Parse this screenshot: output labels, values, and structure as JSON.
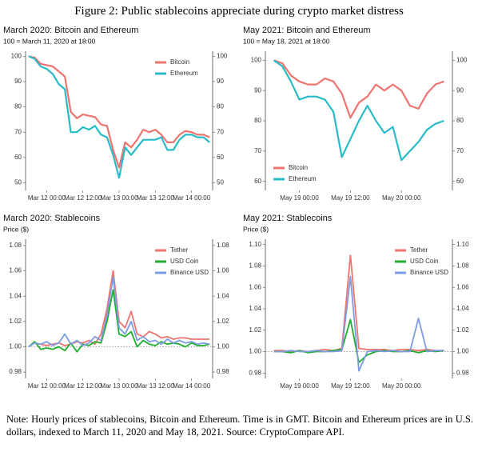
{
  "title": "Figure 2: Public stablecoins appreciate during crypto market distress",
  "note": "Note: Hourly prices of stablecoins, Bitcoin and Ethereum. Time is in GMT. Bitcoin and Ethereum prices are in U.S. dollars, indexed to March 11, 2020 and May 18, 2021. Source: CryptoCompare API.",
  "chart_data": [
    {
      "type": "line",
      "title": "March 2020: Bitcoin and Ethereum",
      "subtitle": "100 = March 11, 2020 at 18:00",
      "x": [
        0,
        2,
        4,
        6,
        8,
        10,
        12,
        14,
        16,
        18,
        20,
        22,
        24,
        26,
        28,
        30,
        32,
        34,
        36,
        38,
        40,
        42,
        44,
        46,
        48,
        50,
        52,
        54,
        56,
        58,
        60
      ],
      "xlim": [
        -1,
        61
      ],
      "xticks": [
        {
          "value": 6,
          "label": "Mar 12 00:00"
        },
        {
          "value": 18,
          "label": "Mar 12 12:00"
        },
        {
          "value": 30,
          "label": "Mar 13 00:00"
        },
        {
          "value": 42,
          "label": "Mar 13 12:00"
        },
        {
          "value": 54,
          "label": "Mar 14 00:00"
        }
      ],
      "ylim": [
        47,
        102
      ],
      "yticks": [
        50,
        60,
        70,
        80,
        90,
        100
      ],
      "y2lim": [
        47,
        102
      ],
      "y2ticks": [
        50,
        60,
        70,
        80,
        90,
        100
      ],
      "legend": "top-right",
      "series": [
        {
          "name": "Bitcoin",
          "color": "#ef7470",
          "values": [
            100,
            99.5,
            97,
            96.5,
            96,
            94,
            92,
            78,
            75.5,
            77,
            76.5,
            76,
            73,
            72.5,
            63,
            56,
            66,
            64,
            67,
            71,
            70,
            71,
            69,
            66,
            66,
            69,
            70.5,
            70,
            69,
            69,
            68
          ]
        },
        {
          "name": "Ethereum",
          "color": "#29bcc6",
          "values": [
            100,
            99,
            96,
            95,
            93,
            89,
            87,
            70,
            70,
            72,
            71,
            72.5,
            69,
            68,
            61,
            52,
            64,
            61,
            64,
            67,
            67,
            67,
            68,
            63,
            63,
            67,
            69,
            69,
            68,
            68,
            66
          ]
        }
      ]
    },
    {
      "type": "line",
      "title": "May 2021: Bitcoin and Ethereum",
      "subtitle": "100 = May 18, 2021 at 18:00",
      "x": [
        0,
        2,
        4,
        6,
        8,
        10,
        12,
        14,
        16,
        18,
        20,
        22,
        24,
        26,
        28,
        30,
        32,
        34,
        36,
        38,
        40
      ],
      "xlim": [
        -2,
        42
      ],
      "xticks": [
        {
          "value": 6,
          "label": "May 19 00:00"
        },
        {
          "value": 18,
          "label": "May 19 12:00"
        },
        {
          "value": 30,
          "label": "May 20 00:00"
        }
      ],
      "ylim": [
        57,
        103
      ],
      "yticks": [
        60,
        70,
        80,
        90,
        100
      ],
      "y2lim": [
        57,
        103
      ],
      "y2ticks": [
        60,
        70,
        80,
        90,
        100
      ],
      "legend": "bottom-left",
      "series": [
        {
          "name": "Bitcoin",
          "color": "#ef7470",
          "values": [
            100,
            99,
            95,
            93,
            92,
            92,
            94,
            93,
            89,
            81,
            86,
            88,
            92,
            90,
            92,
            90,
            85,
            84,
            89,
            92,
            93
          ]
        },
        {
          "name": "Ethereum",
          "color": "#29bcc6",
          "values": [
            100,
            98,
            93,
            87,
            88,
            88,
            87,
            83,
            68,
            74,
            80,
            85,
            80,
            76,
            78,
            67,
            70,
            73,
            77,
            79,
            80
          ]
        }
      ]
    },
    {
      "type": "line",
      "title": "March 2020: Stablecoins",
      "subtitle": "Price ($)",
      "x": [
        0,
        2,
        4,
        6,
        8,
        10,
        12,
        14,
        16,
        18,
        20,
        22,
        24,
        26,
        28,
        30,
        32,
        34,
        36,
        38,
        40,
        42,
        44,
        46,
        48,
        50,
        52,
        54,
        56,
        58,
        60
      ],
      "xlim": [
        -1,
        61
      ],
      "xticks": [
        {
          "value": 6,
          "label": "Mar 12 00:00"
        },
        {
          "value": 18,
          "label": "Mar 12 12:00"
        },
        {
          "value": 30,
          "label": "Mar 13 00:00"
        },
        {
          "value": 42,
          "label": "Mar 13 12:00"
        },
        {
          "value": 54,
          "label": "Mar 14 00:00"
        }
      ],
      "ylim": [
        0.975,
        1.085
      ],
      "yticks": [
        {
          "value": 0.98,
          "label": "0.98"
        },
        {
          "value": 1,
          "label": "1.00"
        },
        {
          "value": 1.02,
          "label": "1.02"
        },
        {
          "value": 1.04,
          "label": "1.04"
        },
        {
          "value": 1.06,
          "label": "1.06"
        },
        {
          "value": 1.08,
          "label": "1.08"
        }
      ],
      "y2lim": [
        0.975,
        1.085
      ],
      "y2ticks": [
        {
          "value": 0.98,
          "label": "0.98"
        },
        {
          "value": 1,
          "label": "1.00"
        },
        {
          "value": 1.02,
          "label": "1.02"
        },
        {
          "value": 1.04,
          "label": "1.04"
        },
        {
          "value": 1.06,
          "label": "1.06"
        },
        {
          "value": 1.08,
          "label": "1.08"
        }
      ],
      "reference_line": 1,
      "legend": "top-right",
      "series": [
        {
          "name": "Tether",
          "color": "#ef7470",
          "values": [
            1.0,
            1.003,
            1.002,
            1.001,
            1.002,
            1.003,
            1.001,
            1.002,
            1.004,
            1.003,
            1.005,
            1.002,
            1.01,
            1.03,
            1.06,
            1.02,
            1.015,
            1.028,
            1.01,
            1.008,
            1.012,
            1.01,
            1.007,
            1.008,
            1.006,
            1.007,
            1.007,
            1.006,
            1.006,
            1.006,
            1.006
          ]
        },
        {
          "name": "USD Coin",
          "color": "#1fae2e",
          "values": [
            1.0,
            1.004,
            0.998,
            0.999,
            0.998,
            1.0,
            0.997,
            1.003,
            0.996,
            1.002,
            1.001,
            1.004,
            1.003,
            1.02,
            1.045,
            1.01,
            1.008,
            1.012,
            1.0,
            1.005,
            1.002,
            1.001,
            1.004,
            1.002,
            1.003,
            1.002,
            1.0,
            1.003,
            1.001,
            1.001,
            1.002
          ]
        },
        {
          "name": "Binance USD",
          "color": "#7c9de2",
          "values": [
            1.0,
            1.003,
            1.002,
            1.004,
            1.001,
            1.003,
            1.01,
            1.002,
            1.005,
            1.001,
            1.003,
            1.008,
            1.005,
            1.025,
            1.055,
            1.015,
            1.01,
            1.02,
            1.005,
            1.008,
            1.004,
            1.005,
            1.002,
            1.006,
            1.003,
            1.005,
            1.003,
            1.004,
            1.002,
            1.003,
            1.002
          ]
        }
      ]
    },
    {
      "type": "line",
      "title": "May 2021: Stablecoins",
      "subtitle": "Price ($)",
      "x": [
        0,
        2,
        4,
        6,
        8,
        10,
        12,
        14,
        16,
        18,
        20,
        22,
        24,
        26,
        28,
        30,
        32,
        34,
        36,
        38,
        40
      ],
      "xlim": [
        -2,
        42
      ],
      "xticks": [
        {
          "value": 6,
          "label": "May 19 00:00"
        },
        {
          "value": 18,
          "label": "May 19 12:00"
        },
        {
          "value": 30,
          "label": "May 20 00:00"
        }
      ],
      "ylim": [
        0.975,
        1.105
      ],
      "yticks": [
        {
          "value": 0.98,
          "label": "0.98"
        },
        {
          "value": 1,
          "label": "1.00"
        },
        {
          "value": 1.02,
          "label": "1.02"
        },
        {
          "value": 1.04,
          "label": "1.04"
        },
        {
          "value": 1.06,
          "label": "1.06"
        },
        {
          "value": 1.08,
          "label": "1.08"
        },
        {
          "value": 1.1,
          "label": "1.10"
        }
      ],
      "y2lim": [
        0.975,
        1.105
      ],
      "y2ticks": [
        {
          "value": 0.98,
          "label": "0.98"
        },
        {
          "value": 1,
          "label": "1.00"
        },
        {
          "value": 1.02,
          "label": "1.02"
        },
        {
          "value": 1.04,
          "label": "1.04"
        },
        {
          "value": 1.06,
          "label": "1.06"
        },
        {
          "value": 1.08,
          "label": "1.08"
        },
        {
          "value": 1.1,
          "label": "1.10"
        }
      ],
      "reference_line": 1,
      "legend": "top-right",
      "series": [
        {
          "name": "Tether",
          "color": "#ef7470",
          "values": [
            1.001,
            1.001,
            1.0,
            1.001,
            1.0,
            1.001,
            1.002,
            1.001,
            1.003,
            1.09,
            1.003,
            1.002,
            1.002,
            1.002,
            1.001,
            1.002,
            1.002,
            1.001,
            1.002,
            1.001,
            1.001
          ]
        },
        {
          "name": "USD Coin",
          "color": "#1fae2e",
          "values": [
            1.0,
            1.0,
            0.999,
            1.001,
            0.999,
            1.0,
            1.0,
            1.001,
            1.002,
            1.03,
            0.99,
            0.997,
            1.0,
            1.001,
            1.0,
            1.0,
            1.001,
            0.999,
            1.001,
            1.0,
            1.001
          ]
        },
        {
          "name": "Binance USD",
          "color": "#7c9de2",
          "values": [
            1.0,
            1.0,
            1.001,
            1.0,
            1.0,
            1.001,
            1.0,
            1.0,
            1.001,
            1.07,
            0.982,
            1.0,
            1.001,
            1.0,
            1.001,
            1.0,
            1.0,
            1.031,
            1.0,
            1.001,
            1.001
          ]
        }
      ]
    }
  ]
}
